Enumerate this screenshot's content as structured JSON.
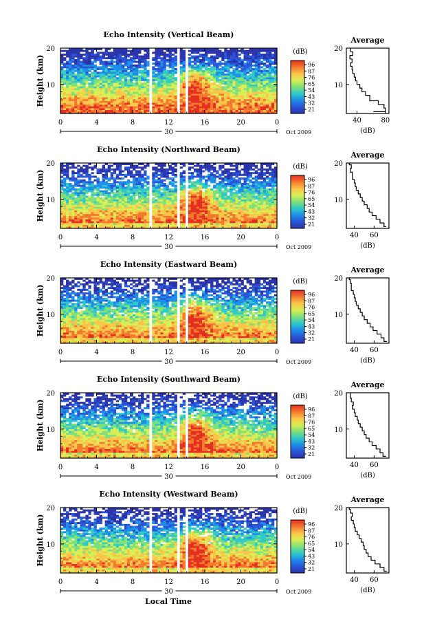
{
  "figure": {
    "xlabel": "Local Time",
    "date_label": "Oct  2009",
    "day_label": "30"
  },
  "colorbar": {
    "unit": "(dB)",
    "ticks": [
      "96",
      "87",
      "76",
      "65",
      "54",
      "43",
      "32",
      "21"
    ],
    "colors": [
      "#e33020",
      "#f4792e",
      "#fdc44a",
      "#d8ee55",
      "#7ee07a",
      "#2fc9c8",
      "#1e8fe8",
      "#2a55d8",
      "#2b34aa"
    ]
  },
  "chart_data": [
    {
      "type": "heatmap",
      "title": "Echo Intensity (Vertical Beam)",
      "ylabel": "Height (km)",
      "xlabel": "Local Time",
      "x_ticks": [
        "0",
        "4",
        "8",
        "12",
        "16",
        "20",
        "0"
      ],
      "y_ticks": [
        "20",
        "10"
      ],
      "xlim": [
        0,
        24
      ],
      "ylim": [
        2,
        20
      ],
      "color_scale_db": [
        21,
        96
      ],
      "data_gaps_hours": [
        [
          9.8,
          10.2
        ],
        [
          12.8,
          13.3
        ],
        [
          13.9,
          14.1
        ]
      ],
      "average_profile": {
        "title": "Average",
        "xlabel": "(dB)",
        "x_ticks": [
          "40",
          "80"
        ],
        "xlim": [
          25,
          85
        ],
        "height_km": [
          2.5,
          3.5,
          4.5,
          5.5,
          7,
          8,
          9,
          10,
          11,
          12,
          13,
          14,
          15,
          16,
          17,
          18,
          19,
          20
        ],
        "value_db": [
          63,
          80,
          78,
          70,
          58,
          52,
          47,
          44,
          40,
          38,
          36,
          34,
          33,
          31,
          33,
          30,
          34,
          31
        ]
      }
    },
    {
      "type": "heatmap",
      "title": "Echo Intensity (Northward Beam)",
      "ylabel": "Height (km)",
      "xlabel": "Local Time",
      "x_ticks": [
        "0",
        "4",
        "8",
        "12",
        "16",
        "20",
        "0"
      ],
      "y_ticks": [
        "20",
        "10"
      ],
      "xlim": [
        0,
        24
      ],
      "ylim": [
        2,
        20
      ],
      "color_scale_db": [
        21,
        96
      ],
      "data_gaps_hours": [
        [
          9.8,
          10.2
        ],
        [
          12.8,
          13.3
        ],
        [
          13.9,
          14.1
        ]
      ],
      "average_profile": {
        "title": "Average",
        "xlabel": "(dB)",
        "x_ticks": [
          "40",
          "60"
        ],
        "xlim": [
          32,
          75
        ],
        "height_km": [
          2.5,
          3.5,
          4.5,
          5.5,
          6.5,
          7.5,
          8.5,
          9.5,
          10.5,
          11.5,
          12.5,
          13.5,
          14.5,
          15.5,
          16.5,
          17.5,
          18.5,
          19.5,
          20
        ],
        "value_db": [
          72,
          70,
          66,
          62,
          58,
          55,
          53,
          50,
          48,
          46,
          44,
          42,
          41,
          40,
          38,
          38,
          36,
          37,
          35
        ]
      }
    },
    {
      "type": "heatmap",
      "title": "Echo Intensity (Eastward Beam)",
      "ylabel": "Height (km)",
      "xlabel": "Local Time",
      "x_ticks": [
        "0",
        "4",
        "8",
        "12",
        "16",
        "20",
        "0"
      ],
      "y_ticks": [
        "20",
        "10"
      ],
      "xlim": [
        0,
        24
      ],
      "ylim": [
        2,
        20
      ],
      "color_scale_db": [
        21,
        96
      ],
      "data_gaps_hours": [
        [
          9.8,
          10.2
        ],
        [
          12.8,
          13.3
        ],
        [
          13.9,
          14.1
        ]
      ],
      "average_profile": {
        "title": "Average",
        "xlabel": "(dB)",
        "x_ticks": [
          "40",
          "60"
        ],
        "xlim": [
          32,
          75
        ],
        "height_km": [
          2.5,
          3.5,
          4.5,
          5.5,
          6.5,
          7.5,
          8.5,
          9.5,
          10.5,
          11.5,
          12.5,
          13.5,
          14.5,
          15.5,
          16.5,
          17.5,
          18.5,
          19.5,
          20
        ],
        "value_db": [
          73,
          70,
          67,
          63,
          59,
          56,
          53,
          50,
          48,
          46,
          44,
          42,
          41,
          40,
          39,
          37,
          37,
          36,
          35
        ]
      }
    },
    {
      "type": "heatmap",
      "title": "Echo Intensity (Southward Beam)",
      "ylabel": "Height (km)",
      "xlabel": "Local Time",
      "x_ticks": [
        "0",
        "4",
        "8",
        "12",
        "16",
        "20",
        "0"
      ],
      "y_ticks": [
        "20",
        "10"
      ],
      "xlim": [
        0,
        24
      ],
      "ylim": [
        2,
        20
      ],
      "color_scale_db": [
        21,
        96
      ],
      "data_gaps_hours": [
        [
          9.8,
          10.2
        ],
        [
          12.8,
          13.3
        ],
        [
          13.9,
          14.1
        ]
      ],
      "average_profile": {
        "title": "Average",
        "xlabel": "(dB)",
        "x_ticks": [
          "40",
          "60"
        ],
        "xlim": [
          32,
          75
        ],
        "height_km": [
          2.5,
          3.5,
          4.5,
          5.5,
          6.5,
          7.5,
          8.5,
          9.5,
          10.5,
          11.5,
          12.5,
          13.5,
          14.5,
          15.5,
          16.5,
          17.5,
          18.5,
          19.5,
          20
        ],
        "value_db": [
          72,
          69,
          66,
          62,
          58,
          55,
          52,
          50,
          48,
          46,
          44,
          43,
          41,
          40,
          38,
          39,
          37,
          36,
          36
        ]
      }
    },
    {
      "type": "heatmap",
      "title": "Echo Intensity (Westward Beam)",
      "ylabel": "Height (km)",
      "xlabel": "Local Time",
      "x_ticks": [
        "0",
        "4",
        "8",
        "12",
        "16",
        "20",
        "0"
      ],
      "y_ticks": [
        "20",
        "10"
      ],
      "xlim": [
        0,
        24
      ],
      "ylim": [
        2,
        20
      ],
      "color_scale_db": [
        21,
        96
      ],
      "data_gaps_hours": [
        [
          9.8,
          10.2
        ],
        [
          12.8,
          13.3
        ],
        [
          13.9,
          14.1
        ]
      ],
      "average_profile": {
        "title": "Average",
        "xlabel": "(dB)",
        "x_ticks": [
          "40",
          "60"
        ],
        "xlim": [
          32,
          75
        ],
        "height_km": [
          2.5,
          3.5,
          4.5,
          5.5,
          6.5,
          7.5,
          8.5,
          9.5,
          10.5,
          11.5,
          12.5,
          13.5,
          14.5,
          15.5,
          16.5,
          17.5,
          18.5,
          19.5,
          20
        ],
        "value_db": [
          73,
          70,
          66,
          61,
          57,
          54,
          52,
          50,
          49,
          47,
          45,
          43,
          41,
          40,
          39,
          37,
          38,
          36,
          35
        ]
      }
    }
  ]
}
